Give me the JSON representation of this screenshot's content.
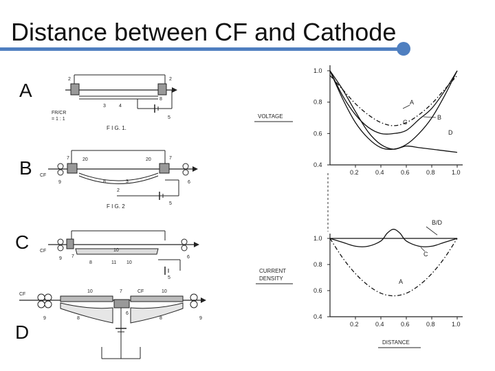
{
  "title": "Distance between CF and Cathode",
  "accent_color": "#4f7fc0",
  "panel_letters": [
    "A",
    "B",
    "C",
    "D"
  ],
  "figure_labels": {
    "fig1": "F I G. 1.",
    "fig2": "F I G. 2",
    "fr_cr": "FR/CR",
    "fr_cr_ratio": "= 1 : 1",
    "cf": "CF"
  },
  "part_numbers": {
    "fig1": [
      "2",
      "2",
      "3",
      "4",
      "5",
      "8"
    ],
    "fig2": [
      "7",
      "20",
      "20",
      "7",
      "9",
      "8",
      "3",
      "2",
      "5",
      "6"
    ],
    "fig3": [
      "7",
      "9",
      "10",
      "8",
      "11",
      "10",
      "5",
      "6",
      "9"
    ],
    "fig4": [
      "10",
      "7",
      "10",
      "CF",
      "9",
      "8",
      "6",
      "8",
      "9"
    ]
  },
  "chart_data": [
    {
      "type": "line",
      "ylabel": "VOLTAGE",
      "x_ticks": [
        "0.2",
        "0.4",
        "0.6",
        "0.8",
        "1.0"
      ],
      "y_ticks": [
        "1.0",
        "0.8",
        "0.6",
        "0.4"
      ],
      "xlim": [
        0,
        1.0
      ],
      "ylim": [
        0.4,
        1.0
      ],
      "series": [
        {
          "name": "A",
          "style": "dash-dot",
          "x": [
            0,
            0.1,
            0.2,
            0.3,
            0.4,
            0.5,
            0.6,
            0.7,
            0.8,
            0.9,
            1.0
          ],
          "y": [
            0.97,
            0.88,
            0.79,
            0.72,
            0.67,
            0.65,
            0.67,
            0.72,
            0.79,
            0.88,
            0.97
          ]
        },
        {
          "name": "B",
          "style": "solid",
          "x": [
            0,
            0.1,
            0.2,
            0.3,
            0.4,
            0.5,
            0.6,
            0.7,
            0.8,
            0.9,
            1.0
          ],
          "y": [
            1.0,
            0.84,
            0.72,
            0.64,
            0.6,
            0.6,
            0.62,
            0.69,
            0.76,
            0.87,
            1.0
          ]
        },
        {
          "name": "C",
          "style": "solid",
          "x": [
            0,
            0.1,
            0.2,
            0.3,
            0.4,
            0.5,
            0.6,
            0.7,
            0.8,
            0.9,
            1.0
          ],
          "y": [
            1.0,
            0.82,
            0.67,
            0.57,
            0.51,
            0.5,
            0.53,
            0.6,
            0.7,
            0.84,
            1.0
          ]
        },
        {
          "name": "D",
          "style": "solid",
          "x": [
            0,
            0.1,
            0.2,
            0.3,
            0.4,
            0.5,
            0.6,
            0.7,
            0.8,
            0.9,
            1.0
          ],
          "y": [
            1.0,
            0.88,
            0.74,
            0.61,
            0.53,
            0.5,
            0.52,
            0.51,
            0.5,
            0.49,
            0.48
          ]
        }
      ]
    },
    {
      "type": "line",
      "ylabel": "CURRENT DENSITY",
      "xlabel": "DISTANCE",
      "x_ticks": [
        "0.2",
        "0.4",
        "0.6",
        "0.8",
        "1.0"
      ],
      "y_ticks": [
        "1.0",
        "0.8",
        "0.6",
        "0.4"
      ],
      "xlim": [
        0,
        1.0
      ],
      "ylim": [
        0.4,
        1.0
      ],
      "series": [
        {
          "name": "A",
          "style": "dash-dot",
          "x": [
            0,
            0.1,
            0.2,
            0.3,
            0.4,
            0.5,
            0.6,
            0.7,
            0.8,
            0.9,
            1.0
          ],
          "y": [
            1.0,
            0.85,
            0.73,
            0.64,
            0.58,
            0.56,
            0.58,
            0.64,
            0.73,
            0.85,
            1.0
          ]
        },
        {
          "name": "B/D",
          "style": "solid",
          "x": [
            0,
            1.0
          ],
          "y": [
            1.0,
            1.0
          ]
        },
        {
          "name": "C",
          "style": "solid",
          "x": [
            0,
            0.1,
            0.2,
            0.3,
            0.4,
            0.45,
            0.5,
            0.55,
            0.6,
            0.7,
            0.8,
            0.9,
            1.0
          ],
          "y": [
            1.0,
            0.97,
            0.94,
            0.94,
            0.98,
            1.04,
            1.07,
            1.04,
            0.98,
            0.94,
            0.94,
            0.97,
            1.0
          ]
        }
      ]
    }
  ]
}
